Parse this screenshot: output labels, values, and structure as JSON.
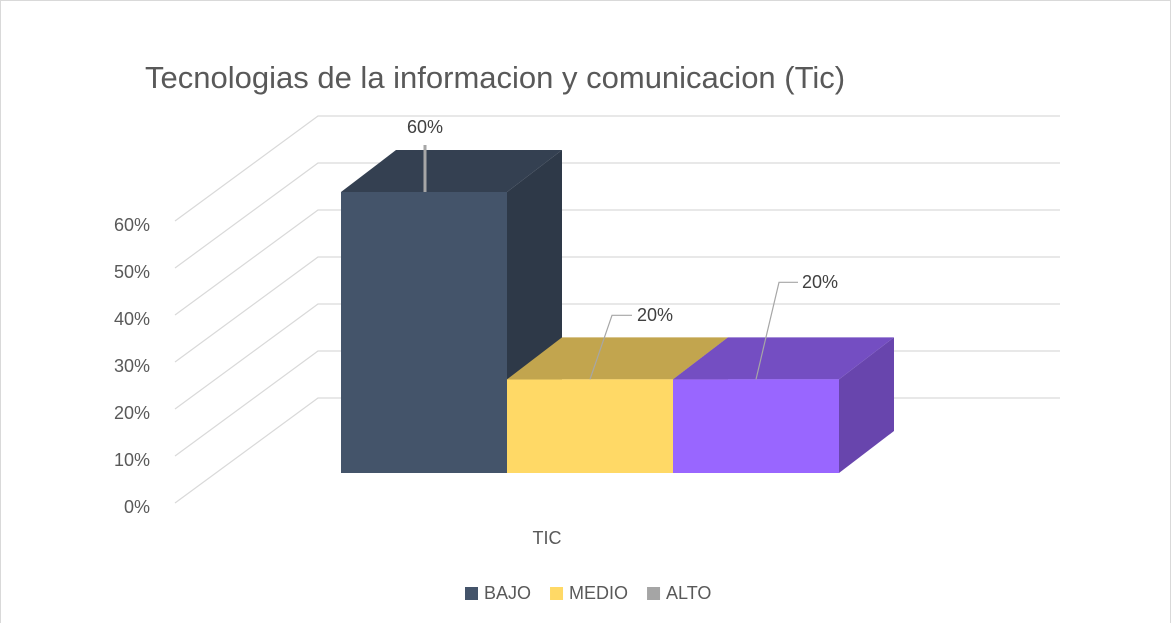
{
  "chart_data": {
    "type": "bar3d",
    "title": "Tecnologias de la informacion y comunicacion (Tic)",
    "categories": [
      "TIC"
    ],
    "series": [
      {
        "name": "BAJO",
        "color": "#44546a",
        "legend_color": "#44546a",
        "values": [
          60
        ],
        "value_labels": [
          "60%"
        ]
      },
      {
        "name": "MEDIO",
        "color": "#ffd966",
        "legend_color": "#ffd966",
        "values": [
          20
        ],
        "value_labels": [
          "20%"
        ]
      },
      {
        "name": "ALTO",
        "color": "#9966ff",
        "legend_color": "#a5a5a5",
        "values": [
          20
        ],
        "value_labels": [
          "20%"
        ]
      }
    ],
    "ylim": [
      0,
      60
    ],
    "yticks": [
      {
        "value": 0,
        "label": "0%"
      },
      {
        "value": 10,
        "label": "10%"
      },
      {
        "value": 20,
        "label": "20%"
      },
      {
        "value": 30,
        "label": "30%"
      },
      {
        "value": 40,
        "label": "40%"
      },
      {
        "value": 50,
        "label": "50%"
      },
      {
        "value": 60,
        "label": "60%"
      }
    ],
    "grid": true,
    "legend": "bottom"
  }
}
